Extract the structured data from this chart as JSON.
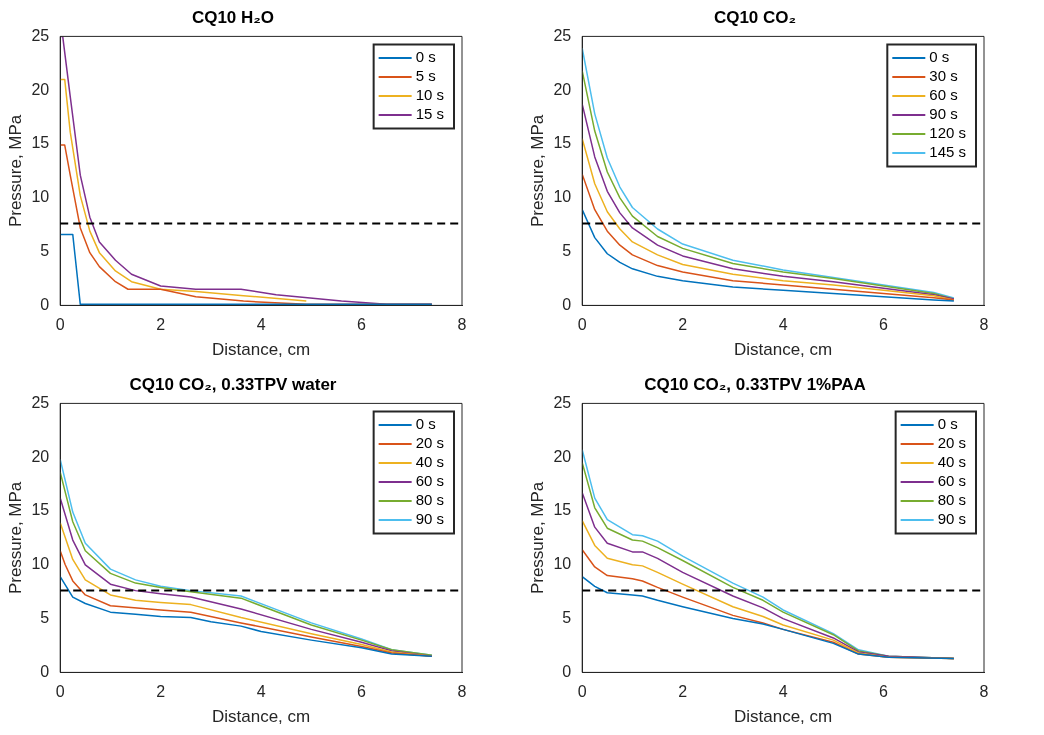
{
  "chart_data": [
    {
      "type": "line",
      "title": "CQ10 H₂O",
      "xlabel": "Distance, cm",
      "ylabel": "Pressure, MPa",
      "xlim": [
        0,
        8
      ],
      "xticks": [
        0,
        2,
        4,
        6,
        8
      ],
      "ylim": [
        0,
        25
      ],
      "yticks": [
        0,
        5,
        10,
        15,
        20,
        25
      ],
      "grid": false,
      "legend": "top right",
      "marker": "none",
      "line_style": "solid",
      "ref_lines": [
        {
          "axis": "y",
          "value": 7.6,
          "color": "#000000",
          "line_style": "dashed"
        }
      ],
      "series": [
        {
          "name": "0 s",
          "color": "#0072bd",
          "x": [
            0,
            0.25,
            0.4,
            7.4
          ],
          "values": [
            6.6,
            6.6,
            0.1,
            0.1
          ]
        },
        {
          "name": "5 s",
          "color": "#d95319",
          "x": [
            0,
            0.09,
            0.2,
            0.4,
            0.59,
            0.78,
            1.1,
            1.35,
            2.0,
            2.7,
            3.65,
            4.9,
            7.4
          ],
          "values": [
            14.9,
            14.9,
            12.1,
            7.2,
            4.9,
            3.6,
            2.2,
            1.5,
            1.5,
            0.8,
            0.4,
            0.1,
            0.1
          ]
        },
        {
          "name": "10 s",
          "color": "#edb120",
          "x": [
            0,
            0.09,
            0.2,
            0.4,
            0.59,
            0.78,
            1.1,
            1.42,
            2.0,
            2.7,
            3.65,
            4.9
          ],
          "values": [
            21,
            21,
            16.1,
            10.2,
            6.9,
            4.9,
            3.2,
            2.2,
            1.5,
            1.3,
            0.9,
            0.4
          ]
        },
        {
          "name": "15 s",
          "color": "#7e2f8e",
          "x": [
            0,
            0.05,
            0.2,
            0.4,
            0.59,
            0.78,
            1.1,
            1.42,
            2.0,
            2.7,
            3.6,
            4.3,
            5.6,
            6.5,
            7.4
          ],
          "values": [
            25,
            25,
            19.4,
            12.1,
            8.2,
            5.9,
            4.2,
            2.9,
            1.8,
            1.5,
            1.5,
            1.0,
            0.4,
            0.1,
            0.1
          ]
        }
      ]
    },
    {
      "type": "line",
      "title": "CQ10 CO₂",
      "xlabel": "Distance, cm",
      "ylabel": "Pressure, MPa",
      "xlim": [
        0,
        8
      ],
      "xticks": [
        0,
        2,
        4,
        6,
        8
      ],
      "ylim": [
        0,
        25
      ],
      "yticks": [
        0,
        5,
        10,
        15,
        20,
        25
      ],
      "grid": false,
      "legend": "top right",
      "marker": "none",
      "line_style": "solid",
      "ref_lines": [
        {
          "axis": "y",
          "value": 7.6,
          "color": "#000000",
          "line_style": "dashed"
        }
      ],
      "series": [
        {
          "name": "0 s",
          "color": "#0072bd",
          "x": [
            0,
            0.25,
            0.5,
            0.75,
            1,
            1.5,
            2,
            3,
            4,
            5,
            6,
            7,
            7.4
          ],
          "values": [
            8.9,
            6.3,
            4.8,
            4.0,
            3.4,
            2.7,
            2.3,
            1.7,
            1.4,
            1.1,
            0.8,
            0.5,
            0.4
          ]
        },
        {
          "name": "30 s",
          "color": "#d95319",
          "x": [
            0,
            0.25,
            0.5,
            0.75,
            1,
            1.5,
            2,
            3,
            4,
            5,
            6,
            7,
            7.4
          ],
          "values": [
            12.2,
            8.9,
            6.9,
            5.6,
            4.7,
            3.7,
            3.1,
            2.3,
            1.9,
            1.5,
            1.1,
            0.7,
            0.5
          ]
        },
        {
          "name": "60 s",
          "color": "#edb120",
          "x": [
            0,
            0.25,
            0.5,
            0.75,
            1,
            1.5,
            2,
            3,
            4,
            5,
            6,
            7,
            7.4
          ],
          "values": [
            15.5,
            11.3,
            8.7,
            7.1,
            5.9,
            4.7,
            3.8,
            2.9,
            2.3,
            1.9,
            1.4,
            0.9,
            0.5
          ]
        },
        {
          "name": "90 s",
          "color": "#7e2f8e",
          "x": [
            0,
            0.25,
            0.5,
            0.75,
            1,
            1.5,
            2,
            3,
            4,
            5,
            6,
            7,
            7.4
          ],
          "values": [
            18.7,
            13.8,
            10.6,
            8.6,
            7.2,
            5.6,
            4.6,
            3.4,
            2.7,
            2.2,
            1.6,
            1.0,
            0.6
          ]
        },
        {
          "name": "120 s",
          "color": "#77ac30",
          "x": [
            0,
            0.25,
            0.5,
            0.75,
            1,
            1.5,
            2,
            3,
            4,
            5,
            6,
            7,
            7.4
          ],
          "values": [
            21.8,
            16.2,
            12.4,
            10.0,
            8.3,
            6.4,
            5.3,
            3.9,
            3.1,
            2.5,
            1.8,
            1.1,
            0.6
          ]
        },
        {
          "name": "145 s",
          "color": "#4dbeee",
          "x": [
            0,
            0.25,
            0.5,
            0.75,
            1,
            1.5,
            2,
            3,
            4,
            5,
            6,
            7,
            7.4
          ],
          "values": [
            23.9,
            17.8,
            13.7,
            11.0,
            9.1,
            7.1,
            5.7,
            4.2,
            3.3,
            2.6,
            1.9,
            1.2,
            0.7
          ]
        }
      ]
    },
    {
      "type": "line",
      "title": "CQ10 CO₂, 0.33TPV water",
      "xlabel": "Distance, cm",
      "ylabel": "Pressure, MPa",
      "xlim": [
        0,
        8
      ],
      "xticks": [
        0,
        2,
        4,
        6,
        8
      ],
      "ylim": [
        0,
        25
      ],
      "yticks": [
        0,
        5,
        10,
        15,
        20,
        25
      ],
      "grid": false,
      "legend": "top right",
      "marker": "none",
      "line_style": "solid",
      "ref_lines": [
        {
          "axis": "y",
          "value": 7.6,
          "color": "#000000",
          "line_style": "dashed"
        }
      ],
      "series": [
        {
          "name": "0 s",
          "color": "#0072bd",
          "x": [
            0,
            0.25,
            0.5,
            1,
            1.5,
            2,
            2.6,
            3,
            3.6,
            4,
            5,
            6,
            6.6,
            7.4
          ],
          "values": [
            8.9,
            7.0,
            6.4,
            5.6,
            5.4,
            5.2,
            5.1,
            4.7,
            4.3,
            3.8,
            3.0,
            2.3,
            1.7,
            1.5
          ]
        },
        {
          "name": "20 s",
          "color": "#d95319",
          "x": [
            0,
            0.1,
            0.25,
            0.5,
            1,
            2,
            2.6,
            3.6,
            5,
            6,
            6.6,
            7.4
          ],
          "values": [
            11.3,
            10,
            8.5,
            7.2,
            6.2,
            5.8,
            5.6,
            4.6,
            3.3,
            2.4,
            1.8,
            1.5
          ]
        },
        {
          "name": "40 s",
          "color": "#edb120",
          "x": [
            0,
            0.25,
            0.5,
            1,
            1.5,
            2,
            2.6,
            3.6,
            5,
            6,
            6.6,
            7.4
          ],
          "values": [
            13.9,
            10.5,
            8.6,
            7.2,
            6.7,
            6.5,
            6.3,
            5.1,
            3.6,
            2.6,
            1.9,
            1.5
          ]
        },
        {
          "name": "60 s",
          "color": "#7e2f8e",
          "x": [
            0,
            0.25,
            0.5,
            1,
            1.5,
            2,
            2.6,
            3.6,
            5,
            6,
            6.6,
            7.4
          ],
          "values": [
            16.2,
            12.3,
            10,
            8.2,
            7.6,
            7.3,
            7.0,
            5.9,
            4.0,
            2.8,
            2.0,
            1.5
          ]
        },
        {
          "name": "80 s",
          "color": "#77ac30",
          "x": [
            0,
            0.25,
            0.5,
            1,
            1.5,
            2,
            2.6,
            3.6,
            5,
            6,
            6.6,
            7.4
          ],
          "values": [
            18.6,
            14,
            11.3,
            9.2,
            8.3,
            7.9,
            7.5,
            6.9,
            4.4,
            3.0,
            2.1,
            1.6
          ]
        },
        {
          "name": "90 s",
          "color": "#4dbeee",
          "x": [
            0,
            0.25,
            0.5,
            1,
            1.5,
            2,
            2.6,
            3.6,
            5,
            6,
            6.6,
            7.4
          ],
          "values": [
            19.8,
            14.9,
            12,
            9.6,
            8.6,
            8.0,
            7.6,
            7.1,
            4.6,
            3.1,
            2.1,
            1.6
          ]
        }
      ]
    },
    {
      "type": "line",
      "title": "CQ10 CO₂, 0.33TPV 1%PAA",
      "xlabel": "Distance, cm",
      "ylabel": "Pressure, MPa",
      "xlim": [
        0,
        8
      ],
      "xticks": [
        0,
        2,
        4,
        6,
        8
      ],
      "ylim": [
        0,
        25
      ],
      "yticks": [
        0,
        5,
        10,
        15,
        20,
        25
      ],
      "grid": false,
      "legend": "top right",
      "marker": "none",
      "line_style": "solid",
      "ref_lines": [
        {
          "axis": "y",
          "value": 7.6,
          "color": "#000000",
          "line_style": "dashed"
        }
      ],
      "series": [
        {
          "name": "0 s",
          "color": "#0072bd",
          "x": [
            0,
            0.25,
            0.5,
            1,
            1.2,
            1.5,
            2,
            3,
            3.6,
            4,
            5,
            5.5,
            6.1,
            7.4
          ],
          "values": [
            8.9,
            8.0,
            7.4,
            7.2,
            7.1,
            6.7,
            6.1,
            5.0,
            4.5,
            4.0,
            2.7,
            1.7,
            1.4,
            1.3
          ]
        },
        {
          "name": "20 s",
          "color": "#d95319",
          "x": [
            0,
            0.25,
            0.5,
            1,
            1.2,
            1.5,
            2,
            3,
            3.6,
            4,
            5,
            5.5,
            6.1,
            7.4
          ],
          "values": [
            11.4,
            9.8,
            9.0,
            8.7,
            8.5,
            7.9,
            7.0,
            5.3,
            4.6,
            4.0,
            2.8,
            1.7,
            1.4,
            1.3
          ]
        },
        {
          "name": "40 s",
          "color": "#edb120",
          "x": [
            0,
            0.25,
            0.5,
            1,
            1.2,
            1.5,
            2,
            3,
            3.6,
            4,
            5,
            5.5,
            6.1,
            7.4
          ],
          "values": [
            14.1,
            11.8,
            10.6,
            10.0,
            9.9,
            9.3,
            8.2,
            6.1,
            5.2,
            4.4,
            3.0,
            1.8,
            1.4,
            1.3
          ]
        },
        {
          "name": "60 s",
          "color": "#7e2f8e",
          "x": [
            0,
            0.25,
            0.5,
            1,
            1.2,
            1.5,
            2,
            3,
            3.6,
            4,
            5,
            5.5,
            6.1,
            7.4
          ],
          "values": [
            16.7,
            13.5,
            12,
            11.2,
            11.2,
            10.6,
            9.3,
            7.1,
            6.0,
            5.0,
            3.2,
            1.9,
            1.5,
            1.3
          ]
        },
        {
          "name": "80 s",
          "color": "#77ac30",
          "x": [
            0,
            0.25,
            0.5,
            1,
            1.2,
            1.5,
            2,
            3,
            3.6,
            4,
            5,
            5.5,
            6.1,
            7.4
          ],
          "values": [
            19.5,
            15.3,
            13.4,
            12.3,
            12.2,
            11.6,
            10.4,
            7.9,
            6.7,
            5.6,
            3.5,
            2.0,
            1.5,
            1.3
          ]
        },
        {
          "name": "90 s",
          "color": "#4dbeee",
          "x": [
            0,
            0.25,
            0.5,
            1,
            1.2,
            1.5,
            2,
            3,
            3.6,
            4,
            5,
            5.5,
            6.1,
            7.4
          ],
          "values": [
            20.7,
            16.2,
            14.2,
            12.8,
            12.7,
            12.2,
            10.8,
            8.3,
            7.0,
            5.8,
            3.6,
            2.1,
            1.5,
            1.3
          ]
        }
      ]
    }
  ]
}
